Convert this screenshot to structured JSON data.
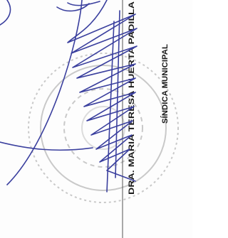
{
  "signature": {
    "name": "DRA. MARIA TERESA HUERTA PADILLA",
    "title": "SÍNDICA MUNICIPAL"
  }
}
